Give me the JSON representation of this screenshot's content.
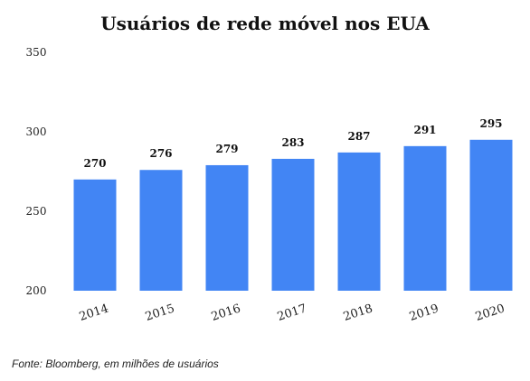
{
  "chart_data": {
    "type": "bar",
    "title": "Usuários de rede móvel nos EUA",
    "categories": [
      "2014",
      "2015",
      "2016",
      "2017",
      "2018",
      "2019",
      "2020"
    ],
    "values": [
      270,
      276,
      279,
      283,
      287,
      291,
      295
    ],
    "ylim": [
      200,
      350
    ],
    "yticks": [
      200,
      250,
      300,
      350
    ],
    "grid": false,
    "bar_color": "#4285f4",
    "xlabel": "",
    "ylabel": ""
  },
  "source": "Fonte: Bloomberg, em milhões de usuários"
}
